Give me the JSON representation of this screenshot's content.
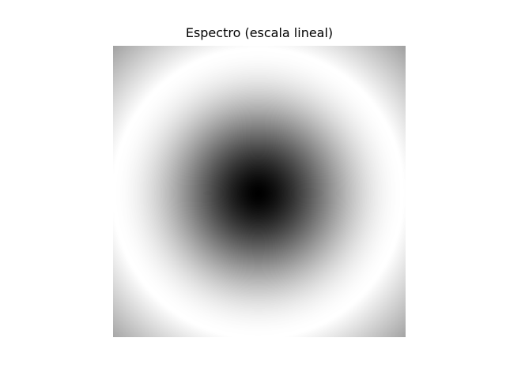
{
  "chart_data": {
    "type": "heatmap",
    "title": "Espectro (escala lineal)",
    "colormap": "gray",
    "axes_visible": false,
    "grid": false,
    "legend": "none",
    "colorbar": false,
    "color_range": [
      0.0,
      1.0
    ],
    "pattern": "radially symmetric spectrum: intensity minimum at the center, rising to maxima at the middle of each edge, lower toward the corners"
  }
}
